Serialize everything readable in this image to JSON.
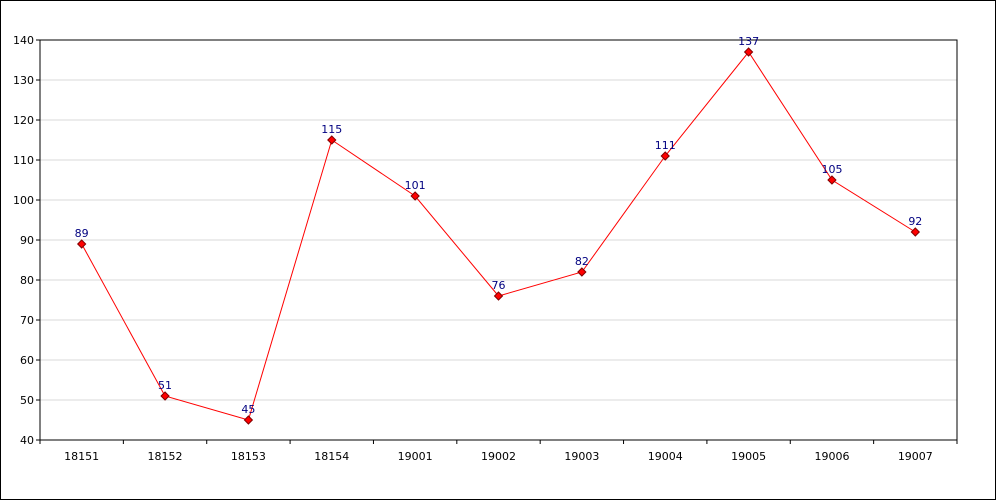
{
  "chart_data": {
    "type": "line",
    "title": "",
    "xlabel": "",
    "ylabel": "",
    "categories": [
      "18151",
      "18152",
      "18153",
      "18154",
      "19001",
      "19002",
      "19003",
      "19004",
      "19005",
      "19006",
      "19007"
    ],
    "series": [
      {
        "values": [
          89,
          51,
          45,
          115,
          101,
          76,
          82,
          111,
          137,
          105,
          92
        ]
      }
    ],
    "ylim": [
      40,
      140
    ],
    "yticks": [
      40,
      50,
      60,
      70,
      80,
      90,
      100,
      110,
      120,
      130,
      140
    ],
    "grid": true,
    "legend": "none",
    "colors": {
      "line": "#ff0000",
      "marker_fill": "#ff0000",
      "marker_stroke": "#800000",
      "data_label": "#000080",
      "grid": "#d9d9d9",
      "axis": "#000000"
    }
  }
}
